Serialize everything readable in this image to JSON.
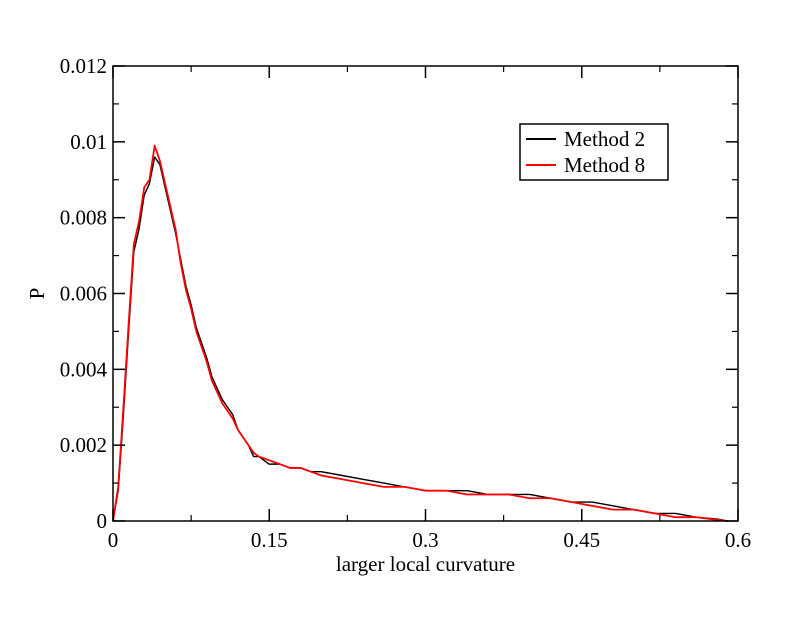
{
  "chart_data": {
    "type": "line",
    "title": "",
    "xlabel": "larger local curvature",
    "ylabel": "P",
    "xlim": [
      0,
      0.6
    ],
    "ylim": [
      0,
      0.012
    ],
    "x_ticks": [
      "0",
      "0.15",
      "0.3",
      "0.45",
      "0.6"
    ],
    "x_tick_values": [
      0,
      0.15,
      0.3,
      0.45,
      0.6
    ],
    "y_ticks": [
      "0",
      "0.002",
      "0.004",
      "0.006",
      "0.008",
      "0.01",
      "0.012"
    ],
    "y_tick_values": [
      0,
      0.002,
      0.004,
      0.006,
      0.008,
      0.01,
      0.012
    ],
    "grid": false,
    "legend_position": "top-right",
    "x": [
      0.0,
      0.005,
      0.01,
      0.015,
      0.02,
      0.025,
      0.03,
      0.035,
      0.04,
      0.045,
      0.05,
      0.055,
      0.06,
      0.065,
      0.07,
      0.075,
      0.08,
      0.085,
      0.09,
      0.095,
      0.1,
      0.105,
      0.11,
      0.115,
      0.12,
      0.125,
      0.13,
      0.135,
      0.14,
      0.15,
      0.16,
      0.17,
      0.18,
      0.19,
      0.2,
      0.22,
      0.24,
      0.26,
      0.28,
      0.3,
      0.32,
      0.34,
      0.36,
      0.38,
      0.4,
      0.42,
      0.44,
      0.46,
      0.48,
      0.5,
      0.52,
      0.54,
      0.56,
      0.58,
      0.59
    ],
    "series": [
      {
        "name": "Method 2",
        "color": "#000000",
        "values": [
          0.0,
          0.0008,
          0.0028,
          0.005,
          0.0071,
          0.0077,
          0.0086,
          0.0089,
          0.0096,
          0.0094,
          0.0088,
          0.0082,
          0.0076,
          0.0069,
          0.0062,
          0.0057,
          0.0051,
          0.0047,
          0.0043,
          0.0038,
          0.0035,
          0.0032,
          0.003,
          0.0028,
          0.0024,
          0.0022,
          0.002,
          0.0017,
          0.0017,
          0.0015,
          0.0015,
          0.0014,
          0.0014,
          0.0013,
          0.0013,
          0.0012,
          0.0011,
          0.001,
          0.0009,
          0.0008,
          0.0008,
          0.0008,
          0.0007,
          0.0007,
          0.0007,
          0.0006,
          0.0005,
          0.0005,
          0.0004,
          0.0003,
          0.0002,
          0.0002,
          0.0001,
          5e-05,
          0.0
        ]
      },
      {
        "name": "Method 8",
        "color": "#ff0000",
        "values": [
          0.0,
          0.0009,
          0.003,
          0.0052,
          0.0073,
          0.0079,
          0.0088,
          0.009,
          0.0099,
          0.0095,
          0.0089,
          0.0083,
          0.0077,
          0.0068,
          0.0061,
          0.0056,
          0.005,
          0.0046,
          0.0042,
          0.0037,
          0.0034,
          0.0031,
          0.0029,
          0.0027,
          0.0024,
          0.0022,
          0.002,
          0.0018,
          0.0017,
          0.0016,
          0.0015,
          0.0014,
          0.0014,
          0.0013,
          0.0012,
          0.0011,
          0.001,
          0.0009,
          0.0009,
          0.0008,
          0.0008,
          0.0007,
          0.0007,
          0.0007,
          0.0006,
          0.0006,
          0.0005,
          0.0004,
          0.0003,
          0.0003,
          0.0002,
          0.0001,
          0.0001,
          3e-05,
          0.0
        ]
      }
    ]
  }
}
